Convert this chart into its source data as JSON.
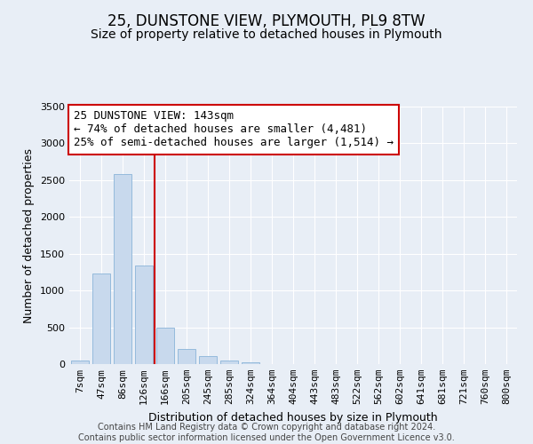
{
  "title": "25, DUNSTONE VIEW, PLYMOUTH, PL9 8TW",
  "subtitle": "Size of property relative to detached houses in Plymouth",
  "xlabel": "Distribution of detached houses by size in Plymouth",
  "ylabel": "Number of detached properties",
  "bar_labels": [
    "7sqm",
    "47sqm",
    "86sqm",
    "126sqm",
    "166sqm",
    "205sqm",
    "245sqm",
    "285sqm",
    "324sqm",
    "364sqm",
    "404sqm",
    "443sqm",
    "483sqm",
    "522sqm",
    "562sqm",
    "602sqm",
    "641sqm",
    "681sqm",
    "721sqm",
    "760sqm",
    "800sqm"
  ],
  "bar_values": [
    50,
    1230,
    2580,
    1340,
    500,
    200,
    110,
    45,
    30,
    0,
    0,
    0,
    0,
    0,
    0,
    0,
    0,
    0,
    0,
    0,
    0
  ],
  "bar_color": "#c8d9ed",
  "bar_edge_color": "#8ab4d8",
  "ylim": [
    0,
    3500
  ],
  "yticks": [
    0,
    500,
    1000,
    1500,
    2000,
    2500,
    3000,
    3500
  ],
  "vline_color": "#cc0000",
  "annotation_line1": "25 DUNSTONE VIEW: 143sqm",
  "annotation_line2": "← 74% of detached houses are smaller (4,481)",
  "annotation_line3": "25% of semi-detached houses are larger (1,514) →",
  "annotation_box_color": "#ffffff",
  "annotation_box_edge": "#cc0000",
  "footer1": "Contains HM Land Registry data © Crown copyright and database right 2024.",
  "footer2": "Contains public sector information licensed under the Open Government Licence v3.0.",
  "bg_color": "#e8eef6",
  "axes_bg_color": "#e8eef6",
  "grid_color": "#ffffff",
  "title_fontsize": 12,
  "subtitle_fontsize": 10,
  "label_fontsize": 9,
  "tick_fontsize": 8,
  "annotation_fontsize": 9,
  "footer_fontsize": 7
}
